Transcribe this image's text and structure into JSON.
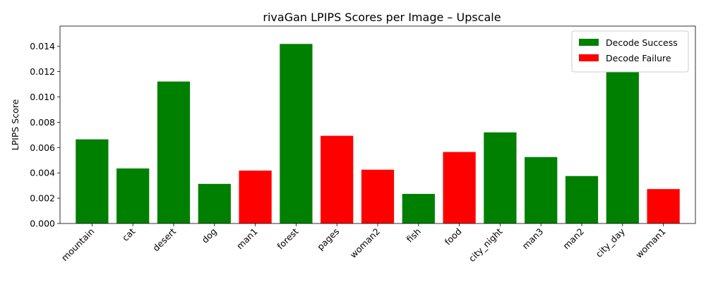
{
  "chart_data": {
    "type": "bar",
    "title": "rivaGan LPIPS Scores per Image – Upscale",
    "xlabel": "",
    "ylabel": "LPIPS Score",
    "ylim": [
      0,
      0.0156
    ],
    "yticks": [
      "0.000",
      "0.002",
      "0.004",
      "0.006",
      "0.008",
      "0.010",
      "0.012",
      "0.014"
    ],
    "categories": [
      "mountain",
      "cat",
      "desert",
      "dog",
      "man1",
      "forest",
      "pages",
      "woman2",
      "fish",
      "food",
      "city_night",
      "man3",
      "man2",
      "city_day",
      "woman1"
    ],
    "values": [
      0.00665,
      0.00435,
      0.01122,
      0.00313,
      0.00418,
      0.01419,
      0.00693,
      0.00425,
      0.00234,
      0.00565,
      0.0072,
      0.00525,
      0.00375,
      0.012,
      0.00272
    ],
    "status": [
      "success",
      "success",
      "success",
      "success",
      "failure",
      "success",
      "failure",
      "failure",
      "success",
      "failure",
      "success",
      "success",
      "success",
      "success",
      "failure"
    ],
    "colors": {
      "success": "#008000",
      "failure": "#ff0000"
    },
    "legend": {
      "placement": "top-right",
      "entries": [
        {
          "key": "success",
          "label": "Decode Success"
        },
        {
          "key": "failure",
          "label": "Decode Failure"
        }
      ]
    },
    "grid": false
  }
}
